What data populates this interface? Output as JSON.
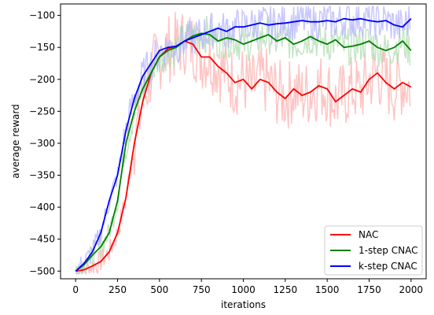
{
  "chart_data": {
    "type": "line",
    "title": "",
    "xlabel": "iterations",
    "ylabel": "average reward",
    "xlim": [
      -90,
      2090
    ],
    "ylim": [
      -512,
      -82
    ],
    "xticks": [
      0,
      250,
      500,
      750,
      1000,
      1250,
      1500,
      1750,
      2000
    ],
    "yticks": [
      -500,
      -450,
      -400,
      -350,
      -300,
      -250,
      -200,
      -150,
      -100
    ],
    "xtick_labels": [
      "0",
      "250",
      "500",
      "750",
      "1000",
      "1250",
      "1500",
      "1750",
      "2000"
    ],
    "ytick_labels": [
      "−500",
      "−450",
      "−400",
      "−350",
      "−300",
      "−250",
      "−200",
      "−150",
      "−100"
    ],
    "grid": false,
    "legend_position": "lower-right",
    "series": [
      {
        "name": "NAC",
        "color": "#ff0000",
        "raw_color": "#ffb0b0",
        "x": [
          0,
          50,
          100,
          150,
          200,
          250,
          300,
          350,
          400,
          450,
          500,
          550,
          600,
          650,
          700,
          750,
          800,
          850,
          900,
          950,
          1000,
          1050,
          1100,
          1150,
          1200,
          1250,
          1300,
          1350,
          1400,
          1450,
          1500,
          1550,
          1600,
          1650,
          1700,
          1750,
          1800,
          1850,
          1900,
          1950,
          2000
        ],
        "y": [
          -500,
          -498,
          -492,
          -485,
          -470,
          -440,
          -385,
          -300,
          -235,
          -190,
          -165,
          -152,
          -148,
          -140,
          -145,
          -165,
          -165,
          -180,
          -190,
          -205,
          -200,
          -215,
          -200,
          -205,
          -220,
          -230,
          -215,
          -225,
          -220,
          -210,
          -215,
          -235,
          -225,
          -215,
          -220,
          -200,
          -190,
          -205,
          -215,
          -205,
          -212
        ]
      },
      {
        "name": "1-step CNAC",
        "color": "#008000",
        "raw_color": "#b0dcb0",
        "x": [
          0,
          50,
          100,
          150,
          200,
          250,
          300,
          350,
          400,
          450,
          500,
          550,
          600,
          650,
          700,
          750,
          800,
          850,
          900,
          950,
          1000,
          1050,
          1100,
          1150,
          1200,
          1250,
          1300,
          1350,
          1400,
          1450,
          1500,
          1550,
          1600,
          1650,
          1700,
          1750,
          1800,
          1850,
          1900,
          1950,
          2000
        ],
        "y": [
          -500,
          -490,
          -475,
          -462,
          -440,
          -390,
          -300,
          -250,
          -215,
          -190,
          -165,
          -155,
          -150,
          -140,
          -132,
          -128,
          -130,
          -140,
          -135,
          -138,
          -145,
          -140,
          -135,
          -130,
          -140,
          -135,
          -145,
          -140,
          -133,
          -140,
          -145,
          -138,
          -150,
          -148,
          -145,
          -140,
          -150,
          -155,
          -150,
          -140,
          -155
        ]
      },
      {
        "name": "k-step CNAC",
        "color": "#0000ff",
        "raw_color": "#b4b4ff",
        "x": [
          0,
          50,
          100,
          150,
          200,
          250,
          300,
          350,
          400,
          450,
          500,
          550,
          600,
          650,
          700,
          750,
          800,
          850,
          900,
          950,
          1000,
          1050,
          1100,
          1150,
          1200,
          1250,
          1300,
          1350,
          1400,
          1450,
          1500,
          1550,
          1600,
          1650,
          1700,
          1750,
          1800,
          1850,
          1900,
          1950,
          2000
        ],
        "y": [
          -500,
          -488,
          -470,
          -440,
          -390,
          -350,
          -280,
          -230,
          -195,
          -175,
          -155,
          -150,
          -148,
          -140,
          -135,
          -130,
          -125,
          -120,
          -125,
          -118,
          -118,
          -115,
          -112,
          -115,
          -113,
          -112,
          -110,
          -108,
          -110,
          -110,
          -108,
          -110,
          -105,
          -107,
          -105,
          -108,
          -110,
          -108,
          -115,
          -118,
          -105
        ]
      }
    ]
  }
}
